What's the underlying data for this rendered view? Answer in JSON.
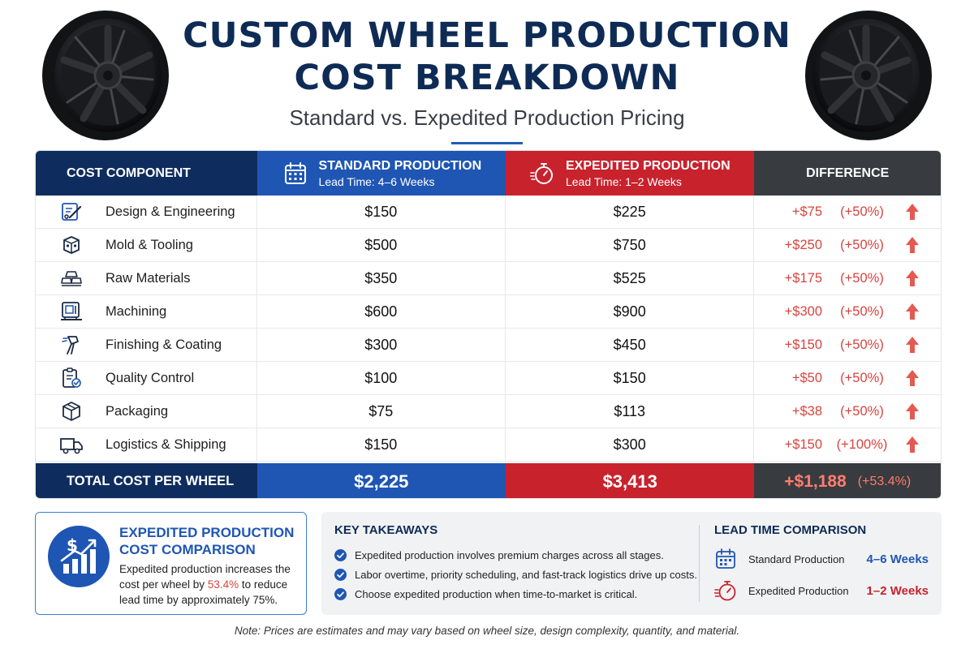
{
  "header": {
    "title_line1": "CUSTOM WHEEL PRODUCTION",
    "title_line2": "COST BREAKDOWN",
    "subtitle": "Standard vs. Expedited Production Pricing"
  },
  "table": {
    "headers": {
      "component": "COST COMPONENT",
      "standard": "STANDARD PRODUCTION",
      "standard_lead": "Lead Time: 4–6 Weeks",
      "expedited": "EXPEDITED PRODUCTION",
      "expedited_lead": "Lead Time: 1–2 Weeks",
      "difference": "DIFFERENCE"
    },
    "rows": [
      {
        "component": "Design & Engineering",
        "icon": "design-icon",
        "standard": "$150",
        "expedited": "$225",
        "diff": "+$75",
        "pct": "(+50%)"
      },
      {
        "component": "Mold & Tooling",
        "icon": "mold-icon",
        "standard": "$500",
        "expedited": "$750",
        "diff": "+$250",
        "pct": "(+50%)"
      },
      {
        "component": "Raw Materials",
        "icon": "raw-materials-icon",
        "standard": "$350",
        "expedited": "$525",
        "diff": "+$175",
        "pct": "(+50%)"
      },
      {
        "component": "Machining",
        "icon": "machining-icon",
        "standard": "$600",
        "expedited": "$900",
        "diff": "+$300",
        "pct": "(+50%)"
      },
      {
        "component": "Finishing & Coating",
        "icon": "spray-gun-icon",
        "standard": "$300",
        "expedited": "$450",
        "diff": "+$150",
        "pct": "(+50%)"
      },
      {
        "component": "Quality Control",
        "icon": "checklist-icon",
        "standard": "$100",
        "expedited": "$150",
        "diff": "+$50",
        "pct": "(+50%)"
      },
      {
        "component": "Packaging",
        "icon": "box-icon",
        "standard": "$75",
        "expedited": "$113",
        "diff": "+$38",
        "pct": "(+50%)"
      },
      {
        "component": "Logistics & Shipping",
        "icon": "truck-icon",
        "standard": "$150",
        "expedited": "$300",
        "diff": "+$150",
        "pct": "(+100%)"
      }
    ],
    "total": {
      "label": "TOTAL COST PER WHEEL",
      "standard": "$2,225",
      "expedited": "$3,413",
      "diff": "+$1,188",
      "pct": "(+53.4%)"
    }
  },
  "summary": {
    "title_line1": "EXPEDITED PRODUCTION",
    "title_line2": "COST COMPARISON",
    "text_before": "Expedited production increases the cost per wheel by ",
    "highlight": "53.4%",
    "text_after": " to reduce lead time by approximately 75%."
  },
  "takeaways": {
    "heading": "KEY TAKEAWAYS",
    "items": [
      "Expedited production involves premium charges across all stages.",
      "Labor overtime, priority scheduling, and fast-track logistics drive up costs.",
      "Choose expedited production when time-to-market is critical."
    ]
  },
  "lead_time": {
    "heading": "LEAD TIME COMPARISON",
    "standard_label": "Standard Production",
    "standard_value": "4–6 Weeks",
    "expedited_label": "Expedited Production",
    "expedited_value": "1–2 Weeks"
  },
  "footnote": "Note: Prices are estimates and may vary based on wheel size, design complexity, quantity, and material.",
  "colors": {
    "navy": "#0e2d5e",
    "standard_blue": "#1f56b3",
    "expedited_red": "#c8222d",
    "difference_gray": "#383b3f",
    "increase_red": "#d9433e"
  }
}
